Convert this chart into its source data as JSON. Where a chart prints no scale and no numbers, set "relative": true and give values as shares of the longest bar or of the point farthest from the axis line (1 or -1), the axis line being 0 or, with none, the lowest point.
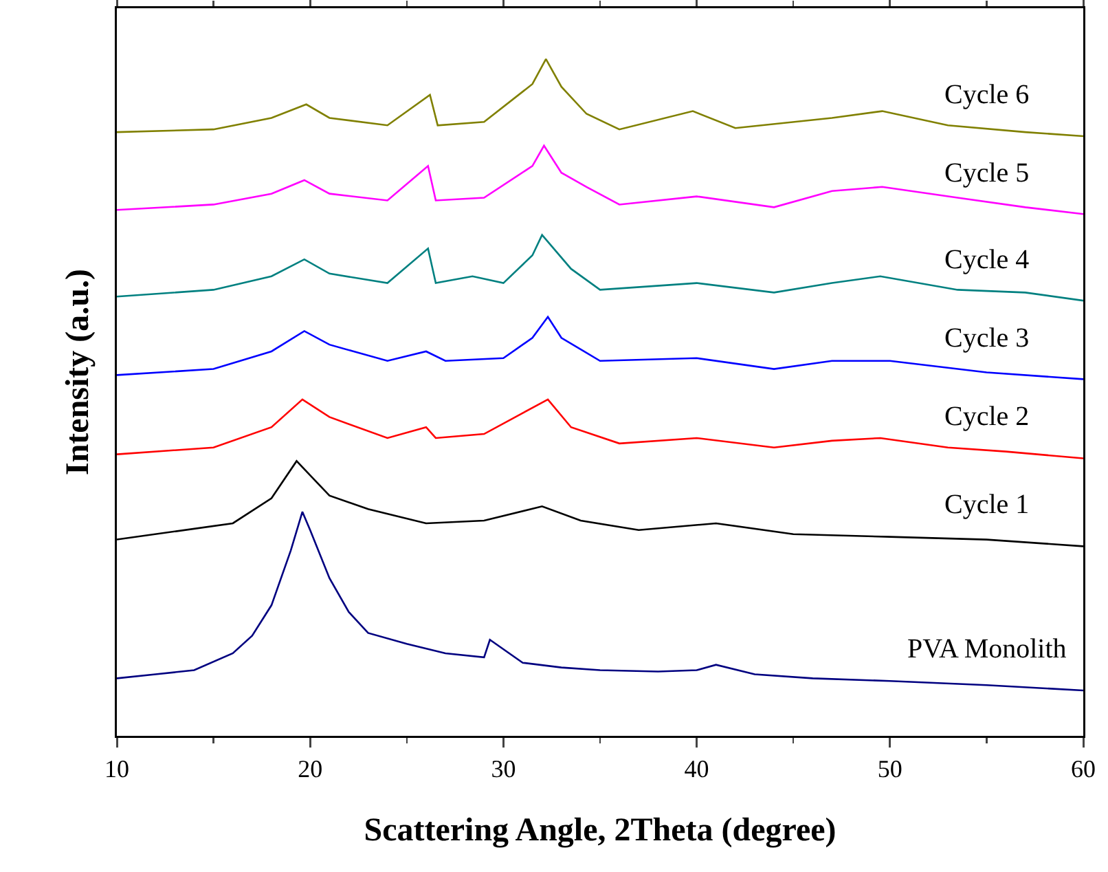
{
  "chart_data": {
    "type": "line",
    "relative": true,
    "xlabel": "Scattering Angle, 2Theta (degree)",
    "ylabel": "Intensity (a.u.)",
    "xlim": [
      10,
      60
    ],
    "xticks": [
      10,
      20,
      30,
      40,
      50,
      60
    ],
    "tick_labels": "x",
    "grid": false,
    "legend": false,
    "series": [
      {
        "name": "PVA Monolith",
        "color": "#000080",
        "x": [
          10,
          12,
          14,
          16,
          17,
          18,
          19,
          19.6,
          20,
          21,
          22,
          23,
          25,
          27,
          29,
          29.3,
          31,
          33,
          35,
          38,
          40,
          41,
          43,
          46,
          50,
          55,
          60
        ],
        "values": [
          0.085,
          0.091,
          0.097,
          0.122,
          0.148,
          0.193,
          0.274,
          0.331,
          0.304,
          0.233,
          0.183,
          0.152,
          0.136,
          0.122,
          0.116,
          0.142,
          0.108,
          0.101,
          0.097,
          0.095,
          0.097,
          0.105,
          0.091,
          0.085,
          0.081,
          0.075,
          0.067
        ]
      },
      {
        "name": "Cycle 1",
        "color": "#000000",
        "x": [
          10,
          16,
          18,
          19.3,
          20,
          21,
          23,
          26,
          29,
          32,
          34,
          37,
          41,
          45,
          50,
          55,
          60
        ],
        "values": [
          0.29,
          0.314,
          0.351,
          0.406,
          0.385,
          0.355,
          0.335,
          0.314,
          0.318,
          0.339,
          0.318,
          0.304,
          0.314,
          0.298,
          0.294,
          0.29,
          0.28
        ]
      },
      {
        "name": "Cycle 2",
        "color": "#ff0000",
        "x": [
          10,
          15,
          18,
          19.6,
          21,
          24,
          26,
          26.5,
          29,
          31,
          32.3,
          33.5,
          36,
          40,
          44,
          47,
          49.5,
          53,
          56,
          60
        ],
        "values": [
          0.416,
          0.426,
          0.456,
          0.497,
          0.471,
          0.44,
          0.456,
          0.44,
          0.446,
          0.477,
          0.497,
          0.456,
          0.432,
          0.44,
          0.426,
          0.436,
          0.44,
          0.426,
          0.42,
          0.41
        ]
      },
      {
        "name": "Cycle 3",
        "color": "#0000ff",
        "x": [
          10,
          15,
          18,
          19.7,
          21,
          24,
          26,
          27,
          30,
          31.5,
          32.3,
          33,
          35,
          40,
          44,
          47,
          50,
          55,
          60
        ],
        "values": [
          0.533,
          0.542,
          0.568,
          0.598,
          0.578,
          0.554,
          0.568,
          0.554,
          0.558,
          0.588,
          0.619,
          0.588,
          0.554,
          0.558,
          0.542,
          0.554,
          0.554,
          0.537,
          0.527
        ]
      },
      {
        "name": "Cycle 4",
        "color": "#008080",
        "x": [
          10,
          15,
          18,
          19.7,
          21,
          24,
          26.1,
          26.5,
          28.4,
          30,
          31.5,
          32,
          33.5,
          35,
          40,
          44,
          47,
          49.5,
          53.5,
          57,
          60
        ],
        "values": [
          0.649,
          0.659,
          0.679,
          0.704,
          0.683,
          0.669,
          0.72,
          0.669,
          0.679,
          0.669,
          0.71,
          0.74,
          0.69,
          0.659,
          0.669,
          0.655,
          0.669,
          0.679,
          0.659,
          0.655,
          0.643
        ]
      },
      {
        "name": "Cycle 5",
        "color": "#ff00ff",
        "x": [
          10,
          15,
          18,
          19.7,
          21,
          24,
          26.1,
          26.5,
          29,
          31.5,
          32.1,
          33,
          34.3,
          36,
          40,
          44,
          47,
          49.6,
          53.5,
          57,
          60
        ],
        "values": [
          0.777,
          0.785,
          0.801,
          0.821,
          0.801,
          0.791,
          0.842,
          0.791,
          0.795,
          0.842,
          0.872,
          0.832,
          0.811,
          0.785,
          0.797,
          0.781,
          0.805,
          0.811,
          0.795,
          0.781,
          0.771
        ]
      },
      {
        "name": "Cycle 6",
        "color": "#808000",
        "x": [
          10,
          15,
          18,
          19.8,
          21,
          24,
          26.2,
          26.6,
          29,
          31.5,
          32.2,
          33,
          34.3,
          36,
          39.8,
          42,
          47,
          49.6,
          53,
          57,
          60
        ],
        "values": [
          0.892,
          0.896,
          0.913,
          0.933,
          0.913,
          0.902,
          0.947,
          0.902,
          0.907,
          0.963,
          1,
          0.959,
          0.919,
          0.896,
          0.923,
          0.898,
          0.913,
          0.923,
          0.902,
          0.892,
          0.886
        ]
      }
    ]
  }
}
